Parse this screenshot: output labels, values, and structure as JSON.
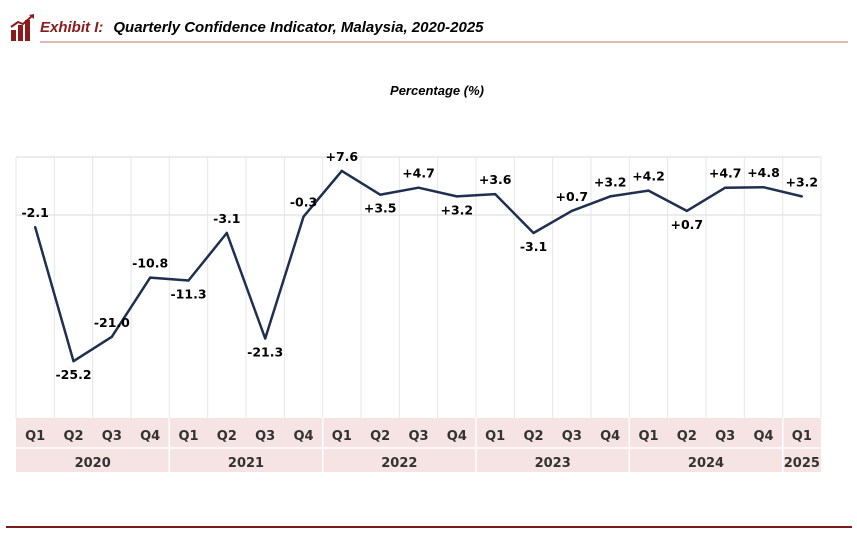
{
  "header": {
    "exhibit_label": "Exhibit",
    "exhibit_number": "I:",
    "title": "Quarterly Confidence Indicator, Malaysia, 2020-2025",
    "logo_icon": "bar-chart-logo-icon"
  },
  "colors": {
    "accent": "#8b1a1a",
    "line": "#1f2f4f",
    "grid": "#d9d9d9",
    "axis_band": "#f6e3e3"
  },
  "chart_data": {
    "type": "line",
    "title": "Percentage (%)",
    "categories": [
      "Q1",
      "Q2",
      "Q3",
      "Q4",
      "Q1",
      "Q2",
      "Q3",
      "Q4",
      "Q1",
      "Q2",
      "Q3",
      "Q4",
      "Q1",
      "Q2",
      "Q3",
      "Q4",
      "Q1",
      "Q2",
      "Q3",
      "Q4",
      "Q1"
    ],
    "years": [
      {
        "label": "2020",
        "quarters": 4
      },
      {
        "label": "2021",
        "quarters": 4
      },
      {
        "label": "2022",
        "quarters": 4
      },
      {
        "label": "2023",
        "quarters": 4
      },
      {
        "label": "2024",
        "quarters": 4
      },
      {
        "label": "2025",
        "quarters": 1
      }
    ],
    "series": [
      {
        "values": [
          -2.1,
          -25.2,
          -21.0,
          -10.8,
          -11.3,
          -3.1,
          -21.3,
          -0.3,
          7.6,
          3.5,
          4.7,
          3.2,
          3.6,
          -3.1,
          0.7,
          3.2,
          4.2,
          0.7,
          4.7,
          4.8,
          3.2
        ],
        "labels": [
          "-2.1",
          "-25.2",
          "-21.0",
          "-10.8",
          "-11.3",
          "-3.1",
          "-21.3",
          "-0.3",
          "+7.6",
          "+3.5",
          "+4.7",
          "+3.2",
          "+3.6",
          "-3.1",
          "+0.7",
          "+3.2",
          "+4.2",
          "+0.7",
          "+4.7",
          "+4.8",
          "+3.2"
        ]
      }
    ],
    "ylim": [
      -35,
      10
    ],
    "grid": true,
    "legend": "none"
  }
}
